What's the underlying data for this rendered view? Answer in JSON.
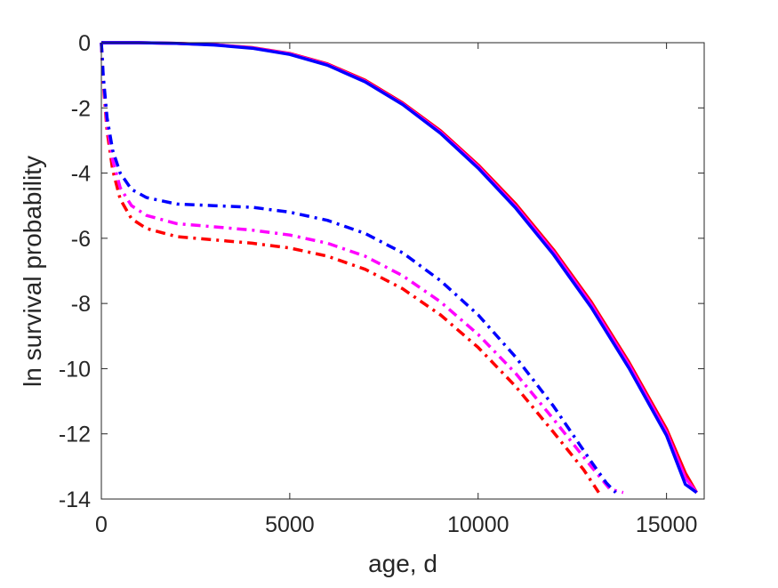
{
  "chart_data": {
    "type": "line",
    "xlabel": "age, d",
    "ylabel": "ln survival probability",
    "xlim": [
      0,
      16000
    ],
    "ylim": [
      -14,
      0
    ],
    "xticks": [
      0,
      5000,
      10000,
      15000
    ],
    "yticks": [
      0,
      -2,
      -4,
      -6,
      -8,
      -10,
      -12,
      -14
    ],
    "grid": false,
    "legend": "none",
    "series": [
      {
        "color": "#ff0000",
        "style": "solid",
        "x": [
          0,
          1000,
          2000,
          3000,
          4000,
          5000,
          6000,
          7000,
          8000,
          9000,
          10000,
          11000,
          12000,
          13000,
          14000,
          15000,
          15500,
          15800
        ],
        "y": [
          0,
          0,
          -0.02,
          -0.06,
          -0.15,
          -0.33,
          -0.65,
          -1.15,
          -1.85,
          -2.7,
          -3.75,
          -4.95,
          -6.35,
          -7.95,
          -9.8,
          -11.85,
          -13.2,
          -13.8
        ]
      },
      {
        "color": "#ff00ff",
        "style": "solid",
        "x": [
          0,
          1000,
          2000,
          3000,
          4000,
          5000,
          6000,
          7000,
          8000,
          9000,
          10000,
          11000,
          12000,
          13000,
          14000,
          15000,
          15500,
          15800
        ],
        "y": [
          0,
          0,
          -0.02,
          -0.06,
          -0.16,
          -0.34,
          -0.67,
          -1.18,
          -1.88,
          -2.74,
          -3.8,
          -5.02,
          -6.42,
          -8.03,
          -9.88,
          -11.95,
          -13.35,
          -13.8
        ]
      },
      {
        "color": "#0000ff",
        "style": "solid",
        "x": [
          0,
          1000,
          2000,
          3000,
          4000,
          5000,
          6000,
          7000,
          8000,
          9000,
          10000,
          11000,
          12000,
          13000,
          14000,
          15000,
          15500,
          15800
        ],
        "y": [
          0,
          0,
          -0.02,
          -0.07,
          -0.17,
          -0.36,
          -0.69,
          -1.2,
          -1.9,
          -2.78,
          -3.85,
          -5.08,
          -6.5,
          -8.12,
          -9.98,
          -12.05,
          -13.55,
          -13.8
        ]
      },
      {
        "color": "#ff0000",
        "style": "dashdot",
        "x": [
          0,
          50,
          150,
          300,
          500,
          800,
          1200,
          2000,
          3000,
          4000,
          5000,
          6000,
          7000,
          8000,
          9000,
          10000,
          11000,
          12000,
          12800,
          13200
        ],
        "y": [
          0,
          -1.2,
          -2.7,
          -3.9,
          -4.8,
          -5.4,
          -5.7,
          -5.95,
          -6.05,
          -6.15,
          -6.3,
          -6.55,
          -6.95,
          -7.55,
          -8.35,
          -9.35,
          -10.55,
          -11.95,
          -13.1,
          -13.8
        ]
      },
      {
        "color": "#ff00ff",
        "style": "dashdot",
        "x": [
          0,
          50,
          150,
          300,
          500,
          800,
          1200,
          2000,
          3000,
          4000,
          5000,
          6000,
          7000,
          8000,
          9000,
          10000,
          11000,
          12000,
          13000,
          13500,
          13850
        ],
        "y": [
          0,
          -1.1,
          -2.5,
          -3.6,
          -4.45,
          -5.0,
          -5.3,
          -5.55,
          -5.65,
          -5.75,
          -5.9,
          -6.15,
          -6.55,
          -7.15,
          -7.95,
          -8.95,
          -10.15,
          -11.55,
          -13.0,
          -13.7,
          -13.8
        ]
      },
      {
        "color": "#0000ff",
        "style": "dashdot",
        "x": [
          0,
          50,
          150,
          300,
          500,
          800,
          1200,
          2000,
          3000,
          4000,
          5000,
          6000,
          7000,
          8000,
          9000,
          10000,
          11000,
          12000,
          13000,
          13400,
          13650
        ],
        "y": [
          0,
          -1.0,
          -2.3,
          -3.3,
          -4.0,
          -4.5,
          -4.75,
          -4.95,
          -5.0,
          -5.05,
          -5.2,
          -5.45,
          -5.85,
          -6.45,
          -7.3,
          -8.35,
          -9.65,
          -11.15,
          -12.85,
          -13.5,
          -13.8
        ]
      }
    ]
  }
}
